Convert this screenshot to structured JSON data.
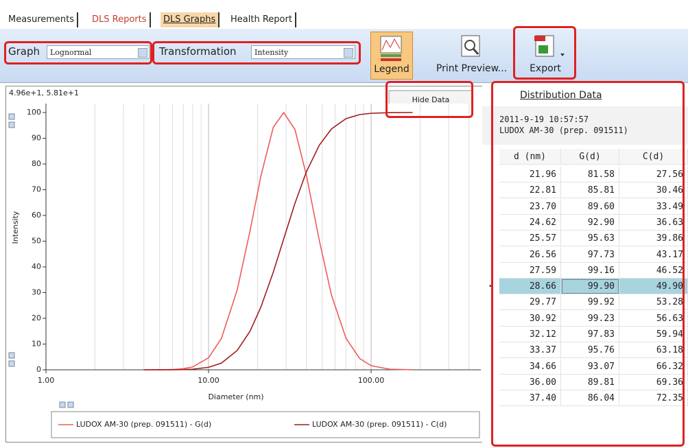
{
  "tabs": [
    "Measurements",
    "DLS Reports",
    "DLS Graphs",
    "Health Report"
  ],
  "toolbar": {
    "graph_label": "Graph",
    "graph_value": "Lognormal",
    "transformation_label": "Transformation",
    "transformation_value": "Intensity",
    "buttons": [
      "Legend",
      "Print Preview...",
      "Export"
    ]
  },
  "chart_data": {
    "type": "line",
    "readout": "4.96e+1, 5.81e+1",
    "hide_data_button": "Hide Data",
    "xlabel": "Diameter (nm)",
    "ylabel": "Intensity",
    "xlog": true,
    "grid": true,
    "xlim": [
      1,
      473
    ],
    "ylim": [
      0,
      100
    ],
    "xticks": [
      {
        "value": 1,
        "label": "1.00"
      },
      {
        "value": 10,
        "label": "10.00"
      },
      {
        "value": 100,
        "label": "100.00"
      }
    ],
    "yticks": [
      0,
      10,
      20,
      30,
      40,
      50,
      60,
      70,
      80,
      90,
      100
    ],
    "x": [
      4,
      5,
      6,
      7,
      8,
      10,
      12,
      15,
      18,
      21,
      25,
      29,
      34,
      40,
      48,
      57,
      70,
      85,
      100,
      130,
      180
    ],
    "series": [
      {
        "name": "LUDOX AM-30 (prep. 091511) - G(d)",
        "color": "#f05a5a",
        "values": [
          0,
          0.02,
          0.12,
          0.42,
          1.13,
          4.66,
          12.2,
          31,
          54,
          75.4,
          94.2,
          100,
          93.4,
          75.6,
          50.3,
          29.1,
          12.3,
          4.4,
          1.6,
          0.23,
          0.01
        ]
      },
      {
        "name": "LUDOX AM-30 (prep. 091511) - C(d)",
        "color": "#a01c1c",
        "values": [
          0,
          0.005,
          0.03,
          0.08,
          0.23,
          0.96,
          2.6,
          7.5,
          15,
          24.4,
          37.9,
          50.9,
          64.7,
          77,
          87.3,
          93.6,
          97.6,
          99.2,
          99.7,
          99.96,
          100
        ]
      }
    ]
  },
  "distribution": {
    "title": "Distribution Data",
    "timestamp": "2011-9-19 10:57:57",
    "sample": "LUDOX AM-30 (prep. 091511)",
    "columns": [
      "d (nm)",
      "G(d)",
      "C(d)"
    ],
    "selected_row": 7,
    "rows": [
      [
        "21.96",
        "81.58",
        "27.56"
      ],
      [
        "22.81",
        "85.81",
        "30.46"
      ],
      [
        "23.70",
        "89.60",
        "33.49"
      ],
      [
        "24.62",
        "92.90",
        "36.63"
      ],
      [
        "25.57",
        "95.63",
        "39.86"
      ],
      [
        "26.56",
        "97.73",
        "43.17"
      ],
      [
        "27.59",
        "99.16",
        "46.52"
      ],
      [
        "28.66",
        "99.90",
        "49.90"
      ],
      [
        "29.77",
        "99.92",
        "53.28"
      ],
      [
        "30.92",
        "99.23",
        "56.63"
      ],
      [
        "32.12",
        "97.83",
        "59.94"
      ],
      [
        "33.37",
        "95.76",
        "63.18"
      ],
      [
        "34.66",
        "93.07",
        "66.32"
      ],
      [
        "36.00",
        "89.81",
        "69.36"
      ],
      [
        "37.40",
        "86.04",
        "72.35"
      ]
    ]
  }
}
